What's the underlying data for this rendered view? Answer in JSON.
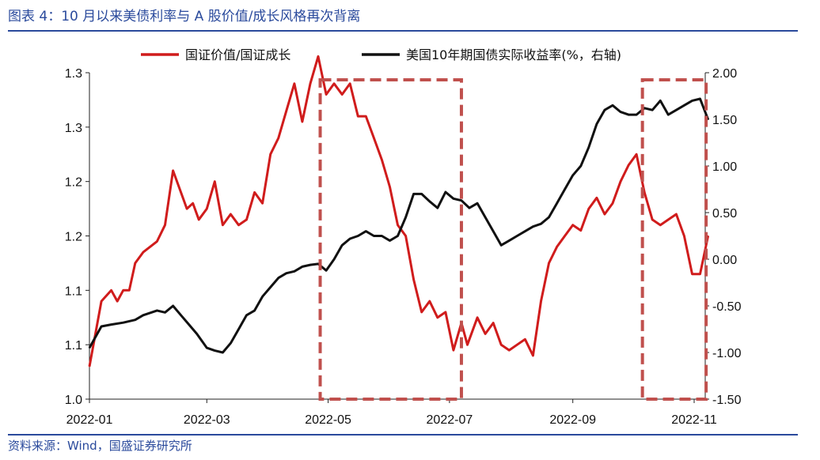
{
  "header": {
    "title": "图表 4：10 月以来美债利率与 A 股价值/成长风格再次背离"
  },
  "footer": {
    "source": "资料来源：Wind，国盛证券研究所"
  },
  "chart_data": {
    "type": "line",
    "title": "图表 4：10 月以来美债利率与 A 股价值/成长风格再次背离",
    "x_ticks": [
      "2022-01",
      "2022-03",
      "2022-05",
      "2022-07",
      "2022-09",
      "2022-11"
    ],
    "y_left": {
      "range": [
        1.0,
        1.3
      ],
      "ticks": [
        1.0,
        1.05,
        1.1,
        1.15,
        1.2,
        1.25,
        1.3
      ],
      "tick_labels": [
        "1.0",
        "1.1",
        "1.1",
        "1.2",
        "1.2",
        "1.3",
        "1.3"
      ]
    },
    "y_right": {
      "range": [
        -1.5,
        2.0
      ],
      "ticks": [
        -1.5,
        -1.0,
        -0.5,
        0.0,
        0.5,
        1.0,
        1.5,
        2.0
      ],
      "tick_labels": [
        "-1.50",
        "-1.00",
        "-0.50",
        "0.00",
        "0.50",
        "1.00",
        "1.50",
        "2.00"
      ]
    },
    "legend_position": "top-center",
    "series": [
      {
        "name": "国证价值/国证成长",
        "axis": "left",
        "color": "#d01c1c",
        "x": [
          "2022-01-01",
          "2022-01-07",
          "2022-01-12",
          "2022-01-15",
          "2022-01-18",
          "2022-01-21",
          "2022-01-24",
          "2022-01-28",
          "2022-02-04",
          "2022-02-08",
          "2022-02-12",
          "2022-02-16",
          "2022-02-19",
          "2022-02-22",
          "2022-02-25",
          "2022-03-01",
          "2022-03-05",
          "2022-03-09",
          "2022-03-13",
          "2022-03-17",
          "2022-03-21",
          "2022-03-25",
          "2022-03-29",
          "2022-04-02",
          "2022-04-06",
          "2022-04-10",
          "2022-04-14",
          "2022-04-18",
          "2022-04-22",
          "2022-04-26",
          "2022-04-30",
          "2022-05-04",
          "2022-05-08",
          "2022-05-12",
          "2022-05-16",
          "2022-05-20",
          "2022-05-24",
          "2022-05-28",
          "2022-06-01",
          "2022-06-05",
          "2022-06-09",
          "2022-06-13",
          "2022-06-17",
          "2022-06-21",
          "2022-06-25",
          "2022-06-29",
          "2022-07-03",
          "2022-07-07",
          "2022-07-10",
          "2022-07-15",
          "2022-07-19",
          "2022-07-23",
          "2022-07-27",
          "2022-07-31",
          "2022-08-04",
          "2022-08-08",
          "2022-08-12",
          "2022-08-16",
          "2022-08-20",
          "2022-08-24",
          "2022-08-28",
          "2022-09-01",
          "2022-09-05",
          "2022-09-09",
          "2022-09-13",
          "2022-09-17",
          "2022-09-21",
          "2022-09-25",
          "2022-09-29",
          "2022-10-03",
          "2022-10-07",
          "2022-10-11",
          "2022-10-15",
          "2022-10-19",
          "2022-10-23",
          "2022-10-27",
          "2022-10-31",
          "2022-11-04",
          "2022-11-08"
        ],
        "values": [
          1.03,
          1.09,
          1.1,
          1.09,
          1.1,
          1.1,
          1.125,
          1.135,
          1.145,
          1.16,
          1.21,
          1.19,
          1.175,
          1.18,
          1.165,
          1.175,
          1.2,
          1.16,
          1.17,
          1.16,
          1.165,
          1.19,
          1.18,
          1.225,
          1.24,
          1.265,
          1.29,
          1.255,
          1.29,
          1.315,
          1.28,
          1.29,
          1.28,
          1.29,
          1.26,
          1.26,
          1.24,
          1.22,
          1.195,
          1.16,
          1.15,
          1.11,
          1.08,
          1.09,
          1.075,
          1.08,
          1.045,
          1.07,
          1.05,
          1.075,
          1.06,
          1.07,
          1.05,
          1.045,
          1.05,
          1.055,
          1.04,
          1.09,
          1.125,
          1.14,
          1.15,
          1.16,
          1.155,
          1.175,
          1.185,
          1.17,
          1.18,
          1.2,
          1.215,
          1.225,
          1.19,
          1.165,
          1.16,
          1.165,
          1.17,
          1.15,
          1.115,
          1.115,
          1.15
        ]
      },
      {
        "name": "美国10年期国债实际收益率(%，右轴)",
        "axis": "right",
        "color": "#111111",
        "x": [
          "2022-01-01",
          "2022-01-07",
          "2022-01-12",
          "2022-01-18",
          "2022-01-24",
          "2022-01-28",
          "2022-02-04",
          "2022-02-08",
          "2022-02-12",
          "2022-02-16",
          "2022-02-20",
          "2022-02-24",
          "2022-03-01",
          "2022-03-05",
          "2022-03-09",
          "2022-03-13",
          "2022-03-17",
          "2022-03-21",
          "2022-03-25",
          "2022-03-29",
          "2022-04-02",
          "2022-04-06",
          "2022-04-10",
          "2022-04-14",
          "2022-04-18",
          "2022-04-22",
          "2022-04-26",
          "2022-04-30",
          "2022-05-04",
          "2022-05-08",
          "2022-05-12",
          "2022-05-16",
          "2022-05-20",
          "2022-05-24",
          "2022-05-28",
          "2022-06-01",
          "2022-06-05",
          "2022-06-09",
          "2022-06-13",
          "2022-06-17",
          "2022-06-21",
          "2022-06-25",
          "2022-06-29",
          "2022-07-03",
          "2022-07-07",
          "2022-07-11",
          "2022-07-15",
          "2022-07-19",
          "2022-07-23",
          "2022-07-27",
          "2022-07-31",
          "2022-08-04",
          "2022-08-08",
          "2022-08-12",
          "2022-08-16",
          "2022-08-20",
          "2022-08-24",
          "2022-08-28",
          "2022-09-01",
          "2022-09-05",
          "2022-09-09",
          "2022-09-13",
          "2022-09-17",
          "2022-09-21",
          "2022-09-25",
          "2022-09-29",
          "2022-10-03",
          "2022-10-07",
          "2022-10-11",
          "2022-10-15",
          "2022-10-19",
          "2022-10-23",
          "2022-10-27",
          "2022-10-31",
          "2022-11-04",
          "2022-11-08"
        ],
        "values": [
          -0.95,
          -0.72,
          -0.7,
          -0.68,
          -0.65,
          -0.6,
          -0.55,
          -0.57,
          -0.5,
          -0.6,
          -0.7,
          -0.8,
          -0.95,
          -0.98,
          -1.0,
          -0.9,
          -0.75,
          -0.6,
          -0.55,
          -0.4,
          -0.3,
          -0.2,
          -0.15,
          -0.13,
          -0.08,
          -0.06,
          -0.05,
          -0.12,
          0.0,
          0.15,
          0.22,
          0.25,
          0.3,
          0.25,
          0.25,
          0.2,
          0.25,
          0.45,
          0.7,
          0.7,
          0.62,
          0.55,
          0.72,
          0.65,
          0.63,
          0.55,
          0.6,
          0.45,
          0.3,
          0.15,
          0.2,
          0.25,
          0.3,
          0.35,
          0.38,
          0.45,
          0.6,
          0.75,
          0.9,
          1.0,
          1.2,
          1.45,
          1.6,
          1.65,
          1.58,
          1.55,
          1.55,
          1.62,
          1.6,
          1.7,
          1.55,
          1.6,
          1.65,
          1.7,
          1.72,
          1.5
        ]
      }
    ],
    "annotations": [
      {
        "type": "dashed-rectangle",
        "color": "#c0504d",
        "x_range": [
          "2022-04-27",
          "2022-07-07"
        ]
      },
      {
        "type": "dashed-rectangle",
        "color": "#c0504d",
        "x_range": [
          "2022-10-06",
          "2022-11-07"
        ]
      }
    ]
  }
}
